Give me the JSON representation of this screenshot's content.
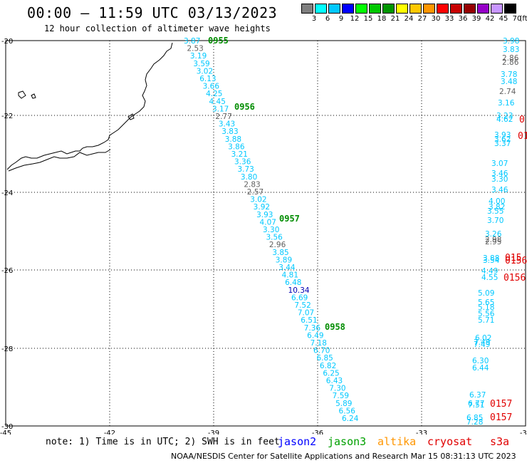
{
  "header": {
    "title": "00:00 – 11:59 UTC 03/13/2023",
    "subtitle": "12 hour collection of altimeter wave heights"
  },
  "legend": {
    "unit": "(ft)",
    "items": [
      {
        "label": "3",
        "color": "#7f7f7f"
      },
      {
        "label": "6",
        "color": "#00ffff"
      },
      {
        "label": "9",
        "color": "#00c8ff"
      },
      {
        "label": "12",
        "color": "#0000ff"
      },
      {
        "label": "15",
        "color": "#00ff00"
      },
      {
        "label": "18",
        "color": "#00c800"
      },
      {
        "label": "21",
        "color": "#009600"
      },
      {
        "label": "24",
        "color": "#ffff00"
      },
      {
        "label": "27",
        "color": "#ffc800"
      },
      {
        "label": "30",
        "color": "#ff9600"
      },
      {
        "label": "33",
        "color": "#ff0000"
      },
      {
        "label": "36",
        "color": "#c80000"
      },
      {
        "label": "39",
        "color": "#960000"
      },
      {
        "label": "42",
        "color": "#9600c8"
      },
      {
        "label": "45",
        "color": "#c896ff"
      },
      {
        "label": "70",
        "color": "#000000"
      }
    ]
  },
  "axes": {
    "lon_labels": [
      "-45",
      "-42",
      "-39",
      "-36",
      "-33",
      "-30"
    ],
    "lat_labels": [
      "-20",
      "-22",
      "-24",
      "-26",
      "-28",
      "-30"
    ]
  },
  "colors": {
    "gray": "#606060",
    "cyan": "#00c8ff",
    "blue": "#0000b4",
    "green": "#008c00",
    "red": "#e00000"
  },
  "track_times": [
    "0955",
    "0956",
    "0957",
    "0958"
  ],
  "track_labels": [
    {
      "v": "3.87",
      "c": "cyan"
    },
    {
      "v": "2.53",
      "c": "gray"
    },
    {
      "v": "3.19",
      "c": "cyan"
    },
    {
      "v": "3.59",
      "c": "cyan"
    },
    {
      "v": "3.02",
      "c": "cyan"
    },
    {
      "v": "6.13",
      "c": "cyan"
    },
    {
      "v": "3.66",
      "c": "cyan"
    },
    {
      "v": "4.25",
      "c": "cyan"
    },
    {
      "v": "4.45",
      "c": "cyan"
    },
    {
      "v": "3.17",
      "c": "cyan"
    },
    {
      "v": "2.77",
      "c": "gray"
    },
    {
      "v": "3.43",
      "c": "cyan"
    },
    {
      "v": "3.83",
      "c": "cyan"
    },
    {
      "v": "3.88",
      "c": "cyan"
    },
    {
      "v": "3.86",
      "c": "cyan"
    },
    {
      "v": "3.21",
      "c": "cyan"
    },
    {
      "v": "3.36",
      "c": "cyan"
    },
    {
      "v": "3.73",
      "c": "cyan"
    },
    {
      "v": "3.80",
      "c": "cyan"
    },
    {
      "v": "2.83",
      "c": "gray"
    },
    {
      "v": "2.57",
      "c": "gray"
    },
    {
      "v": "3.02",
      "c": "cyan"
    },
    {
      "v": "3.92",
      "c": "cyan"
    },
    {
      "v": "3.93",
      "c": "cyan"
    },
    {
      "v": "4.07",
      "c": "cyan"
    },
    {
      "v": "3.30",
      "c": "cyan"
    },
    {
      "v": "3.56",
      "c": "cyan"
    },
    {
      "v": "2.96",
      "c": "gray"
    },
    {
      "v": "3.85",
      "c": "cyan"
    },
    {
      "v": "3.89",
      "c": "cyan"
    },
    {
      "v": "3.44",
      "c": "cyan"
    },
    {
      "v": "4.81",
      "c": "cyan"
    },
    {
      "v": "6.48",
      "c": "cyan"
    },
    {
      "v": "10.34",
      "c": "blue"
    },
    {
      "v": "6.69",
      "c": "cyan"
    },
    {
      "v": "7.52",
      "c": "cyan"
    },
    {
      "v": "7.07",
      "c": "cyan"
    },
    {
      "v": "6.51",
      "c": "cyan"
    },
    {
      "v": "7.36",
      "c": "cyan"
    },
    {
      "v": "6.49",
      "c": "cyan"
    },
    {
      "v": "7.18",
      "c": "cyan"
    },
    {
      "v": "6.70",
      "c": "cyan"
    },
    {
      "v": "6.85",
      "c": "cyan"
    },
    {
      "v": "6.82",
      "c": "cyan"
    },
    {
      "v": "6.25",
      "c": "cyan"
    },
    {
      "v": "6.43",
      "c": "cyan"
    },
    {
      "v": "7.30",
      "c": "cyan"
    },
    {
      "v": "7.59",
      "c": "cyan"
    },
    {
      "v": "5.89",
      "c": "cyan"
    },
    {
      "v": "6.56",
      "c": "cyan"
    },
    {
      "v": "6.24",
      "c": "cyan"
    }
  ],
  "right_labels": [
    {
      "v": "3.98",
      "c": "cyan"
    },
    {
      "v": "3.83",
      "c": "cyan"
    },
    {
      "v": "2.86",
      "c": "gray"
    },
    {
      "v": "2.86",
      "c": "gray"
    },
    {
      "v": "3.78",
      "c": "cyan"
    },
    {
      "v": "3.48",
      "c": "cyan"
    },
    {
      "v": "2.74",
      "c": "gray"
    },
    {
      "v": "3.16",
      "c": "cyan"
    },
    {
      "v": "3.23",
      "c": "cyan"
    },
    {
      "v": "4.62",
      "c": "cyan"
    },
    {
      "v": "0",
      "c": "red"
    },
    {
      "v": "3.93",
      "c": "cyan"
    },
    {
      "v": "3.62",
      "c": "cyan"
    },
    {
      "v": "3.37",
      "c": "cyan"
    },
    {
      "v": "01",
      "c": "red"
    },
    {
      "v": "3.07",
      "c": "cyan"
    },
    {
      "v": "3.46",
      "c": "cyan"
    },
    {
      "v": "3.30",
      "c": "cyan"
    },
    {
      "v": "3.46",
      "c": "cyan"
    },
    {
      "v": "4.00",
      "c": "cyan"
    },
    {
      "v": "3.82",
      "c": "cyan"
    },
    {
      "v": "3.55",
      "c": "cyan"
    },
    {
      "v": "3.70",
      "c": "cyan"
    },
    {
      "v": "3.26",
      "c": "cyan"
    },
    {
      "v": "2.98",
      "c": "gray"
    },
    {
      "v": "2.95",
      "c": "gray"
    },
    {
      "v": "3.88",
      "c": "cyan"
    },
    {
      "v": "3.54",
      "c": "cyan"
    },
    {
      "v": "015",
      "c": "red"
    },
    {
      "v": "0156",
      "c": "red"
    },
    {
      "v": "4.49",
      "c": "cyan"
    },
    {
      "v": "4.55",
      "c": "cyan"
    },
    {
      "v": "0156",
      "c": "red"
    },
    {
      "v": "5.09",
      "c": "cyan"
    },
    {
      "v": "5.65",
      "c": "cyan"
    },
    {
      "v": "5.18",
      "c": "cyan"
    },
    {
      "v": "5.56",
      "c": "cyan"
    },
    {
      "v": "5.71",
      "c": "cyan"
    },
    {
      "v": "6.02",
      "c": "cyan"
    },
    {
      "v": "7.49",
      "c": "cyan"
    },
    {
      "v": "7.49",
      "c": "cyan"
    },
    {
      "v": "6.30",
      "c": "cyan"
    },
    {
      "v": "6.44",
      "c": "cyan"
    },
    {
      "v": "6.37",
      "c": "cyan"
    },
    {
      "v": "6.77",
      "c": "cyan"
    },
    {
      "v": "7.51",
      "c": "cyan"
    },
    {
      "v": "0157",
      "c": "red"
    },
    {
      "v": "6.85",
      "c": "cyan"
    },
    {
      "v": "7.28",
      "c": "cyan"
    },
    {
      "v": "0157",
      "c": "red"
    }
  ],
  "footer": {
    "note": "note: 1) Time is in UTC; 2) SWH is in feet",
    "sat1": "jason2",
    "sat2": "jason3",
    "sat3": "altika",
    "sat4": "cryosat",
    "sat5": "s3a",
    "sat_colors": [
      "#0000ff",
      "#00a000",
      "#ff9600",
      "#e00000",
      "#e00000"
    ],
    "credit": "NOAA/NESDIS Center for Satellite Applications and Research    Mar 15 08:31:13 UTC 2023"
  }
}
